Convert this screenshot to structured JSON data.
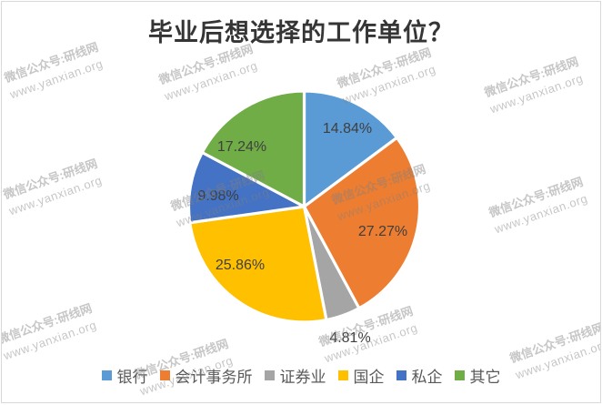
{
  "chart_data": {
    "type": "pie",
    "title": "毕业后想选择的工作单位？",
    "categories": [
      "银行",
      "会计事务所",
      "证券业",
      "国企",
      "私企",
      "其它"
    ],
    "values": [
      14.84,
      27.27,
      4.81,
      25.86,
      9.98,
      17.24
    ],
    "labels": [
      "14.84%",
      "27.27%",
      "4.81%",
      "25.86%",
      "9.98%",
      "17.24%"
    ],
    "colors": [
      "#5B9BD5",
      "#ED7D31",
      "#A5A5A5",
      "#FFC000",
      "#4472C4",
      "#70AD47"
    ],
    "legend_position": "bottom",
    "start_angle_deg": 0,
    "direction": "clockwise",
    "slice_border_color": "#FFFFFF"
  },
  "watermark": {
    "line1": "微信公众号:研线网",
    "line2": "www.yanxian.org"
  }
}
